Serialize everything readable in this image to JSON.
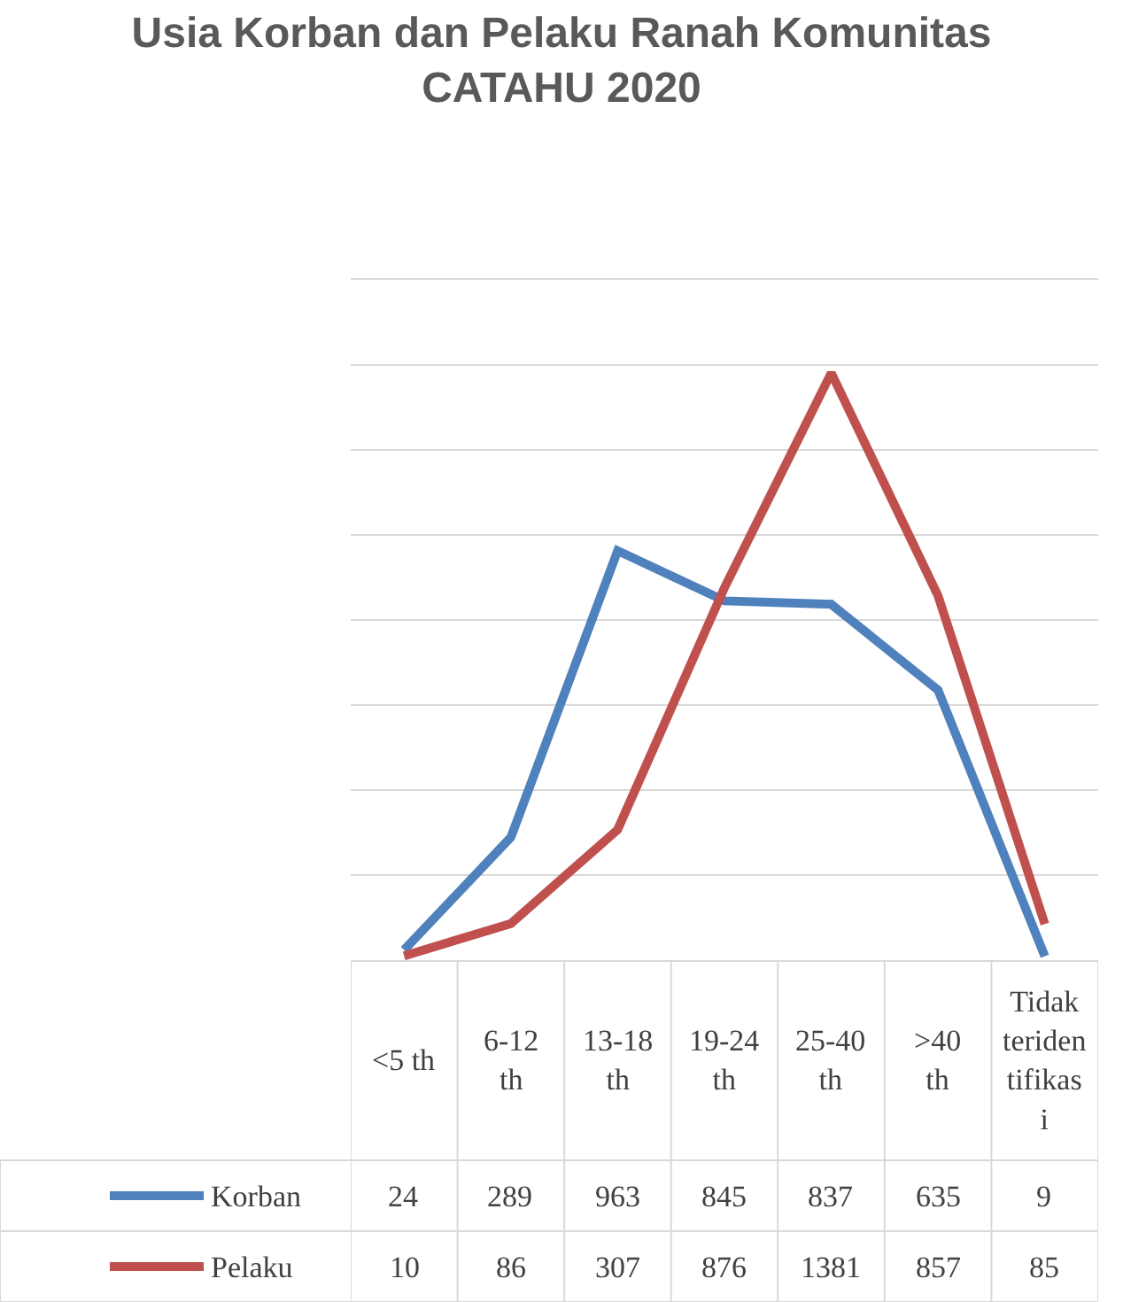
{
  "chart_data": {
    "type": "line",
    "title": "Usia Korban dan Pelaku Ranah Komunitas CATAHU 2020",
    "categories": [
      "<5 th",
      "6-12 th",
      "13-18 th",
      "19-24 th",
      "25-40 th",
      ">40 th",
      "Tidak teridentifikasi"
    ],
    "series": [
      {
        "name": "Korban",
        "color": "#4f81bd",
        "values": [
          24,
          289,
          963,
          845,
          837,
          635,
          9
        ]
      },
      {
        "name": "Pelaku",
        "color": "#c0504d",
        "values": [
          10,
          86,
          307,
          876,
          1381,
          857,
          85
        ]
      }
    ],
    "ylim": [
      0,
      1600
    ],
    "yticks": [
      {
        "value": 0,
        "label": null
      },
      {
        "value": 200,
        "label": null
      },
      {
        "value": 400,
        "label": null
      },
      {
        "value": 600,
        "label": null
      },
      {
        "value": 800,
        "label": null
      },
      {
        "value": 1000,
        "label": null
      },
      {
        "value": 1200,
        "label": null
      },
      {
        "value": 1400,
        "label": null
      },
      {
        "value": 1600,
        "label": null
      }
    ],
    "grid": "y",
    "data_labels": true,
    "legend": "bottom left",
    "tick_labels": "x",
    "marker": "none",
    "line_style": "solid"
  }
}
